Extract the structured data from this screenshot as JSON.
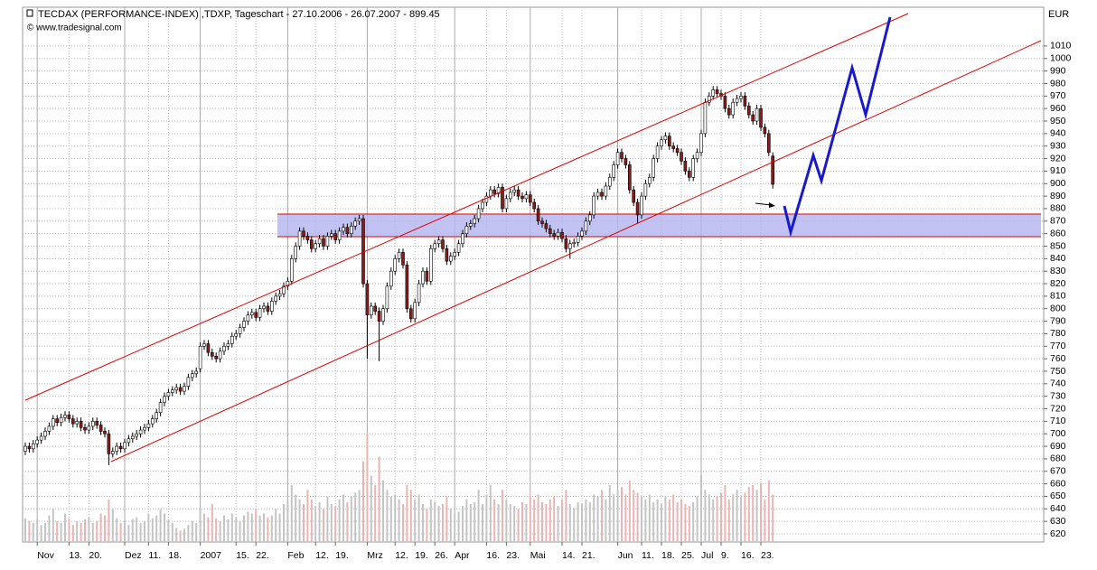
{
  "chart_data": {
    "type": "candlestick",
    "title": "TECDAX (PERFORMANCE-INDEX) ,TDXP, Tageschart - 27.10.2006 - 26.07.2007 - 899.45",
    "source": "© www.tradesignal.com",
    "unit": "EUR",
    "categories": [
      null,
      null,
      null,
      "Nov",
      null,
      null,
      null,
      null,
      null,
      null,
      null,
      "13.",
      null,
      null,
      null,
      null,
      "20.",
      null,
      null,
      null,
      null,
      null,
      null,
      null,
      null,
      "Dez",
      null,
      null,
      null,
      null,
      null,
      "11.",
      null,
      null,
      null,
      null,
      "18.",
      null,
      null,
      null,
      null,
      null,
      null,
      null,
      "2007",
      null,
      null,
      null,
      null,
      null,
      null,
      null,
      null,
      "15.",
      null,
      null,
      null,
      null,
      "22.",
      null,
      null,
      null,
      null,
      null,
      null,
      null,
      "Feb",
      null,
      null,
      null,
      null,
      null,
      null,
      "12.",
      null,
      null,
      null,
      null,
      "19.",
      null,
      null,
      null,
      null,
      null,
      null,
      null,
      "Mrz",
      null,
      null,
      null,
      null,
      null,
      null,
      "12.",
      null,
      null,
      null,
      null,
      "19.",
      null,
      null,
      null,
      null,
      "26.",
      null,
      null,
      null,
      null,
      "Apr",
      null,
      null,
      null,
      null,
      null,
      null,
      null,
      "16.",
      null,
      null,
      null,
      null,
      "23.",
      null,
      null,
      null,
      null,
      null,
      "Mai",
      null,
      null,
      null,
      null,
      null,
      null,
      null,
      "14.",
      null,
      null,
      null,
      null,
      "21.",
      null,
      null,
      null,
      null,
      null,
      null,
      null,
      null,
      "Jun",
      null,
      null,
      null,
      null,
      null,
      "11.",
      null,
      null,
      null,
      null,
      "18.",
      null,
      null,
      null,
      null,
      "25.",
      null,
      null,
      null,
      null,
      "Jul",
      null,
      null,
      null,
      null,
      "9.",
      null,
      null,
      null,
      null,
      "16.",
      null,
      null,
      null,
      null,
      "23.",
      null,
      null,
      null
    ],
    "open": [
      686,
      690,
      688,
      692,
      695,
      698,
      702,
      706,
      712,
      709,
      713,
      715,
      712,
      708,
      710,
      705,
      703,
      706,
      710,
      707,
      702,
      700,
      684,
      686,
      690,
      688,
      693,
      696,
      698,
      700,
      703,
      705,
      708,
      712,
      717,
      725,
      730,
      733,
      735,
      737,
      734,
      738,
      745,
      748,
      752,
      770,
      772,
      765,
      762,
      760,
      766,
      770,
      772,
      778,
      780,
      785,
      790,
      795,
      797,
      793,
      800,
      802,
      798,
      806,
      810,
      812,
      818,
      822,
      840,
      850,
      862,
      858,
      855,
      848,
      852,
      856,
      850,
      858,
      860,
      855,
      862,
      865,
      860,
      866,
      870,
      872,
      820,
      795,
      802,
      798,
      790,
      800,
      818,
      830,
      840,
      845,
      835,
      800,
      792,
      805,
      820,
      830,
      822,
      848,
      852,
      855,
      848,
      838,
      842,
      845,
      852,
      860,
      866,
      868,
      872,
      880,
      885,
      890,
      895,
      892,
      897,
      880,
      888,
      893,
      895,
      890,
      888,
      891,
      885,
      880,
      870,
      868,
      864,
      860,
      858,
      861,
      856,
      848,
      852,
      853,
      858,
      862,
      870,
      875,
      890,
      893,
      890,
      898,
      905,
      915,
      925,
      920,
      915,
      895,
      885,
      875,
      890,
      900,
      905,
      920,
      930,
      935,
      938,
      930,
      928,
      925,
      918,
      910,
      905,
      920,
      925,
      940,
      965,
      970,
      975,
      972,
      970,
      960,
      955,
      965,
      968,
      970,
      962,
      955,
      950,
      960,
      945,
      940,
      922
    ],
    "high": [
      693,
      693,
      695,
      698,
      701,
      705,
      709,
      715,
      715,
      716,
      718,
      718,
      715,
      713,
      713,
      708,
      709,
      713,
      713,
      710,
      705,
      703,
      689,
      693,
      693,
      696,
      699,
      701,
      703,
      706,
      708,
      711,
      715,
      720,
      728,
      733,
      736,
      738,
      740,
      740,
      741,
      748,
      751,
      753,
      773,
      775,
      775,
      768,
      765,
      769,
      773,
      775,
      781,
      783,
      788,
      793,
      798,
      800,
      800,
      803,
      805,
      805,
      809,
      813,
      815,
      821,
      825,
      843,
      853,
      865,
      865,
      861,
      858,
      855,
      859,
      859,
      861,
      863,
      863,
      865,
      868,
      868,
      869,
      873,
      875,
      875,
      823,
      805,
      805,
      801,
      803,
      821,
      833,
      843,
      848,
      848,
      838,
      803,
      808,
      823,
      833,
      833,
      851,
      855,
      858,
      858,
      851,
      845,
      848,
      855,
      863,
      869,
      871,
      875,
      883,
      888,
      893,
      898,
      898,
      900,
      900,
      891,
      896,
      898,
      898,
      893,
      894,
      894,
      888,
      883,
      873,
      871,
      867,
      863,
      864,
      864,
      859,
      855,
      856,
      861,
      865,
      873,
      878,
      893,
      896,
      896,
      901,
      908,
      918,
      928,
      928,
      923,
      918,
      898,
      888,
      893,
      903,
      908,
      923,
      933,
      938,
      941,
      941,
      933,
      931,
      928,
      921,
      913,
      923,
      928,
      943,
      968,
      973,
      978,
      978,
      975,
      973,
      963,
      968,
      971,
      973,
      973,
      965,
      958,
      963,
      963,
      948,
      943,
      925
    ],
    "low": [
      683,
      685,
      685,
      689,
      692,
      695,
      699,
      703,
      706,
      706,
      710,
      709,
      705,
      705,
      702,
      700,
      700,
      703,
      704,
      699,
      697,
      675,
      681,
      683,
      685,
      685,
      690,
      693,
      695,
      697,
      700,
      702,
      705,
      709,
      714,
      722,
      727,
      730,
      732,
      731,
      731,
      735,
      742,
      745,
      749,
      767,
      762,
      759,
      757,
      757,
      763,
      767,
      769,
      775,
      777,
      782,
      787,
      792,
      790,
      790,
      797,
      795,
      795,
      803,
      807,
      809,
      815,
      819,
      837,
      847,
      855,
      852,
      845,
      845,
      849,
      847,
      847,
      855,
      852,
      852,
      859,
      857,
      857,
      863,
      867,
      817,
      760,
      792,
      795,
      758,
      787,
      797,
      815,
      827,
      837,
      832,
      797,
      789,
      789,
      802,
      817,
      819,
      819,
      845,
      849,
      845,
      835,
      835,
      839,
      842,
      849,
      857,
      863,
      865,
      869,
      877,
      882,
      887,
      889,
      889,
      877,
      877,
      885,
      890,
      887,
      885,
      885,
      882,
      877,
      867,
      865,
      861,
      857,
      855,
      855,
      853,
      845,
      840,
      849,
      850,
      855,
      859,
      867,
      872,
      887,
      887,
      887,
      895,
      902,
      912,
      917,
      912,
      892,
      882,
      868,
      872,
      887,
      897,
      902,
      917,
      927,
      932,
      927,
      925,
      922,
      915,
      907,
      902,
      902,
      917,
      922,
      937,
      962,
      967,
      969,
      967,
      957,
      952,
      952,
      962,
      965,
      959,
      952,
      947,
      947,
      942,
      937,
      922,
      896
    ],
    "close": [
      690,
      688,
      692,
      695,
      698,
      702,
      706,
      712,
      709,
      713,
      715,
      712,
      708,
      710,
      705,
      703,
      706,
      710,
      707,
      702,
      700,
      684,
      686,
      690,
      688,
      693,
      696,
      698,
      700,
      703,
      705,
      708,
      712,
      717,
      725,
      730,
      733,
      735,
      737,
      734,
      738,
      745,
      748,
      750,
      770,
      772,
      765,
      762,
      760,
      766,
      770,
      772,
      778,
      780,
      785,
      790,
      795,
      797,
      793,
      800,
      802,
      798,
      806,
      810,
      812,
      818,
      822,
      840,
      850,
      862,
      858,
      855,
      848,
      852,
      856,
      850,
      858,
      860,
      855,
      862,
      865,
      860,
      866,
      870,
      872,
      820,
      795,
      802,
      798,
      790,
      800,
      818,
      830,
      840,
      845,
      835,
      800,
      792,
      805,
      820,
      830,
      822,
      848,
      852,
      855,
      848,
      838,
      842,
      845,
      852,
      860,
      866,
      868,
      872,
      880,
      885,
      890,
      895,
      892,
      897,
      880,
      888,
      893,
      895,
      890,
      888,
      891,
      885,
      880,
      870,
      868,
      864,
      860,
      858,
      861,
      856,
      848,
      852,
      853,
      858,
      862,
      870,
      875,
      890,
      893,
      890,
      898,
      905,
      915,
      925,
      920,
      915,
      895,
      885,
      875,
      890,
      900,
      905,
      920,
      930,
      935,
      938,
      930,
      928,
      925,
      918,
      910,
      905,
      920,
      925,
      940,
      965,
      970,
      975,
      972,
      970,
      960,
      955,
      965,
      968,
      970,
      962,
      955,
      950,
      960,
      945,
      940,
      925,
      899.45
    ],
    "volume": [
      25,
      22,
      20,
      24,
      18,
      20,
      28,
      35,
      22,
      20,
      30,
      25,
      18,
      22,
      20,
      24,
      26,
      20,
      22,
      30,
      28,
      45,
      35,
      25,
      20,
      22,
      18,
      24,
      26,
      20,
      22,
      30,
      25,
      28,
      35,
      30,
      24,
      20,
      15,
      12,
      14,
      18,
      22,
      20,
      35,
      30,
      26,
      40,
      25,
      22,
      28,
      24,
      30,
      26,
      22,
      28,
      32,
      30,
      35,
      28,
      30,
      26,
      28,
      35,
      30,
      40,
      45,
      60,
      50,
      45,
      40,
      55,
      45,
      38,
      42,
      35,
      48,
      40,
      38,
      45,
      50,
      42,
      48,
      52,
      55,
      85,
      115,
      70,
      60,
      90,
      65,
      55,
      48,
      50,
      45,
      40,
      60,
      55,
      45,
      50,
      40,
      35,
      45,
      42,
      38,
      40,
      48,
      35,
      30,
      32,
      38,
      45,
      40,
      42,
      55,
      40,
      50,
      60,
      45,
      40,
      55,
      45,
      40,
      38,
      35,
      42,
      40,
      48,
      45,
      50,
      42,
      40,
      45,
      48,
      38,
      45,
      55,
      40,
      36,
      42,
      40,
      45,
      42,
      50,
      48,
      55,
      45,
      60,
      50,
      55,
      58,
      50,
      65,
      55,
      52,
      48,
      45,
      50,
      42,
      45,
      40,
      48,
      45,
      50,
      42,
      45,
      40,
      38,
      42,
      48,
      70,
      55,
      50,
      45,
      48,
      52,
      60,
      45,
      50,
      55,
      48,
      52,
      58,
      60,
      55,
      62,
      45,
      65,
      50
    ],
    "up_color": "#ffffff",
    "down_color": "#8b1a1a",
    "volume_up_color": "#c4c4c4",
    "volume_down_color": "#eab4b4",
    "ylim": [
      613.5,
      1041
    ],
    "yticks": [
      620,
      630,
      640,
      650,
      660,
      670,
      680,
      690,
      700,
      710,
      720,
      730,
      740,
      750,
      760,
      770,
      780,
      790,
      800,
      810,
      820,
      830,
      840,
      850,
      860,
      870,
      880,
      890,
      900,
      910,
      920,
      930,
      940,
      950,
      960,
      970,
      980,
      990,
      1000,
      1010
    ],
    "grid": true
  }
}
